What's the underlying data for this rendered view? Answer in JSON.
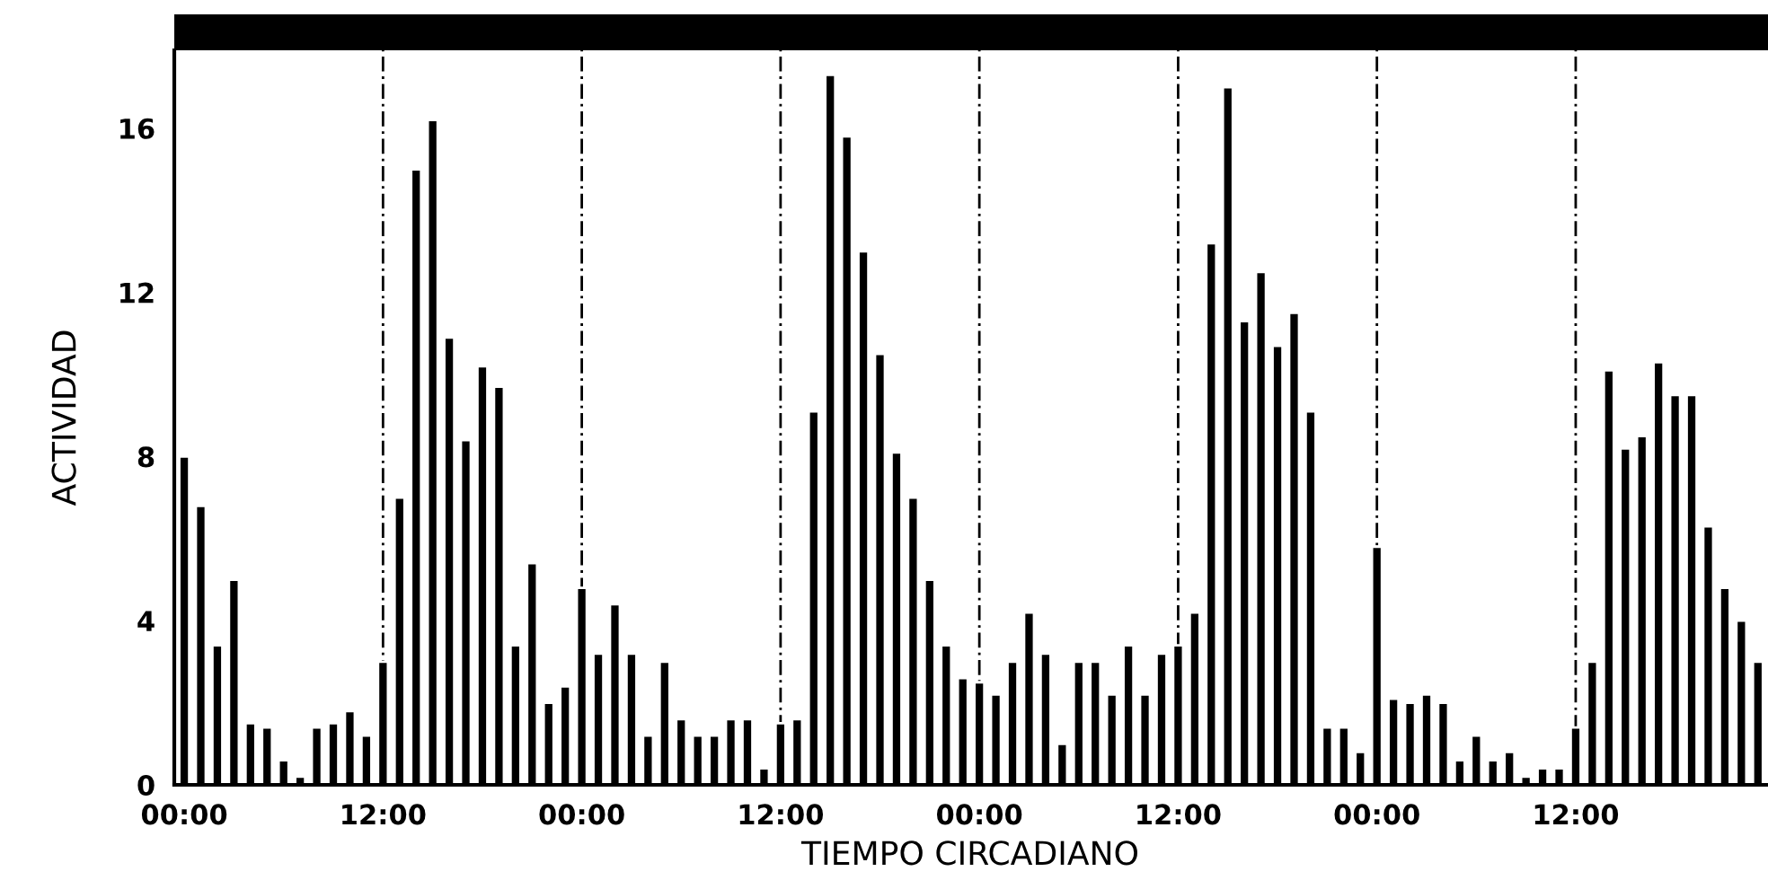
{
  "chart_data": {
    "type": "bar",
    "xlabel": "TIEMPO CIRCADIANO",
    "ylabel": "ACTIVIDAD",
    "categories": [
      "00:00",
      null,
      null,
      null,
      null,
      null,
      null,
      null,
      null,
      null,
      null,
      null,
      "12:00",
      null,
      null,
      null,
      null,
      null,
      null,
      null,
      null,
      null,
      null,
      null,
      "00:00",
      null,
      null,
      null,
      null,
      null,
      null,
      null,
      null,
      null,
      null,
      null,
      "12:00",
      null,
      null,
      null,
      null,
      null,
      null,
      null,
      null,
      null,
      null,
      null,
      "00:00",
      null,
      null,
      null,
      null,
      null,
      null,
      null,
      null,
      null,
      null,
      null,
      "12:00",
      null,
      null,
      null,
      null,
      null,
      null,
      null,
      null,
      null,
      null,
      null,
      "00:00",
      null,
      null,
      null,
      null,
      null,
      null,
      null,
      null,
      null,
      null,
      null,
      "12:00",
      null,
      null,
      null,
      null,
      null,
      null,
      null,
      null,
      null,
      null,
      null
    ],
    "series": [
      {
        "color": "#000000",
        "values": [
          8.0,
          6.8,
          3.4,
          5.0,
          1.5,
          1.4,
          0.6,
          0.2,
          1.4,
          1.5,
          1.8,
          1.2,
          3.0,
          7.0,
          15.0,
          16.2,
          10.9,
          8.4,
          10.2,
          9.7,
          3.4,
          5.4,
          2.0,
          2.4,
          4.8,
          3.2,
          4.4,
          3.2,
          1.2,
          3.0,
          1.6,
          1.2,
          1.2,
          1.6,
          1.6,
          0.4,
          1.5,
          1.6,
          9.1,
          17.3,
          15.8,
          13.0,
          10.5,
          8.1,
          7.0,
          5.0,
          3.4,
          2.6,
          2.5,
          2.2,
          3.0,
          4.2,
          3.2,
          1.0,
          3.0,
          3.0,
          2.2,
          3.4,
          2.2,
          3.2,
          3.4,
          4.2,
          13.2,
          17.0,
          11.3,
          12.5,
          10.7,
          11.5,
          9.1,
          1.4,
          1.4,
          0.8,
          5.8,
          2.1,
          2.0,
          2.2,
          2.0,
          0.6,
          1.2,
          0.6,
          0.8,
          0.2,
          0.4,
          0.4,
          1.4,
          3.0,
          10.1,
          8.2,
          8.5,
          10.3,
          9.5,
          9.5,
          6.3,
          4.8,
          4.0,
          3.0
        ]
      }
    ],
    "ylim": [
      0,
      17.9
    ],
    "yticks": [
      0,
      4,
      8,
      12,
      16
    ],
    "grid": "x"
  }
}
